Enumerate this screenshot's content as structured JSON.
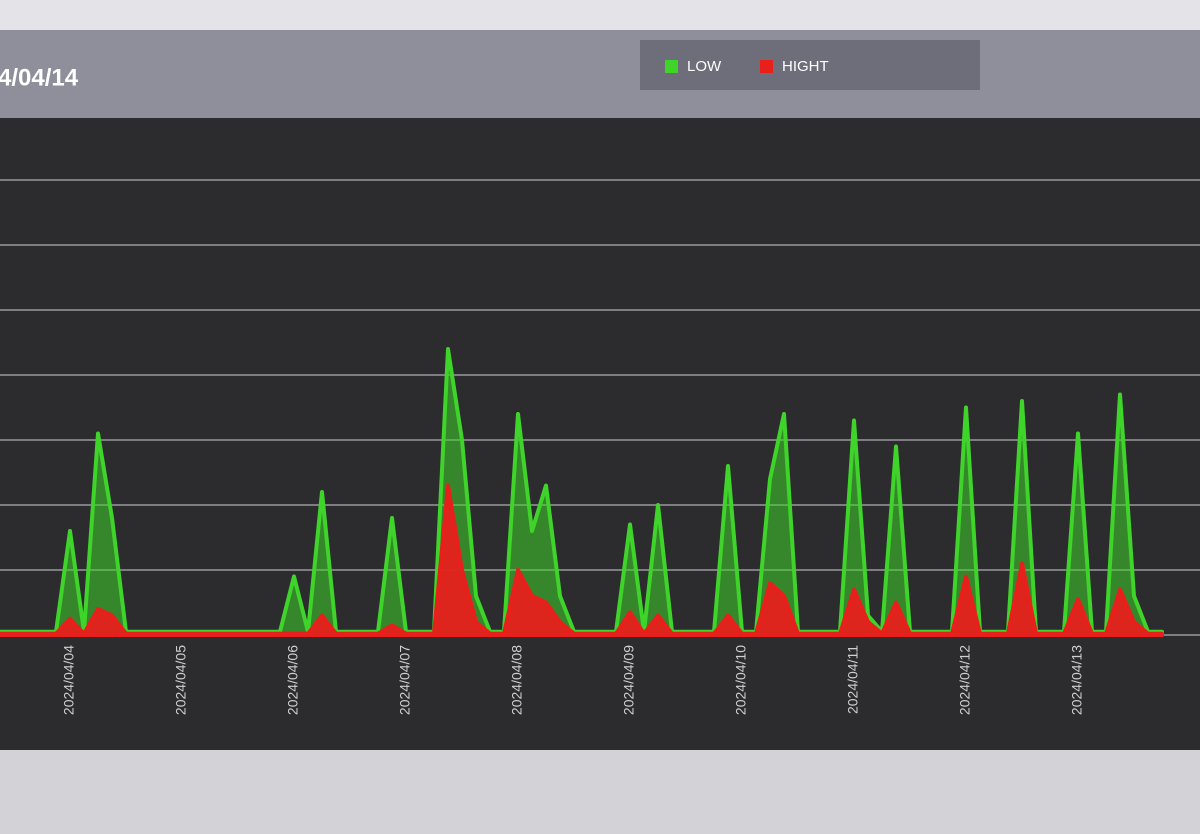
{
  "chart_data": {
    "type": "area",
    "title": "4/04/14",
    "categories": [
      null,
      null,
      null,
      null,
      null,
      "2024/04/04",
      null,
      null,
      null,
      null,
      null,
      null,
      null,
      "2024/04/05",
      null,
      null,
      null,
      null,
      null,
      null,
      null,
      "2024/04/06",
      null,
      null,
      null,
      null,
      null,
      null,
      null,
      "2024/04/07",
      null,
      null,
      null,
      null,
      null,
      null,
      null,
      "2024/04/08",
      null,
      null,
      null,
      null,
      null,
      null,
      null,
      "2024/04/09",
      null,
      null,
      null,
      null,
      null,
      null,
      null,
      "2024/04/10",
      null,
      null,
      null,
      null,
      null,
      null,
      null,
      "2024/04/11",
      null,
      null,
      null,
      null,
      null,
      null,
      null,
      "2024/04/12",
      null,
      null,
      null,
      null,
      null,
      null,
      null,
      "2024/04/13",
      null,
      null,
      null,
      null,
      null,
      null
    ],
    "series": [
      {
        "name": "LOW",
        "color": "#3fd42a",
        "values": [
          0.05,
          0.05,
          0.05,
          0.05,
          0.05,
          1.6,
          0.05,
          3.1,
          1.8,
          0.05,
          0.05,
          0.05,
          0.05,
          0.05,
          0.05,
          0.05,
          0.05,
          0.05,
          0.05,
          0.05,
          0.05,
          0.9,
          0.05,
          2.2,
          0.05,
          0.05,
          0.05,
          0.05,
          1.8,
          0.05,
          0.05,
          0.05,
          4.4,
          3.0,
          0.6,
          0.05,
          0.05,
          3.4,
          1.6,
          2.3,
          0.6,
          0.05,
          0.05,
          0.05,
          0.05,
          1.7,
          0.05,
          2.0,
          0.05,
          0.05,
          0.05,
          0.05,
          2.6,
          0.05,
          0.05,
          2.4,
          3.4,
          0.05,
          0.05,
          0.05,
          0.05,
          3.3,
          0.3,
          0.05,
          2.9,
          0.05,
          0.05,
          0.05,
          0.05,
          3.5,
          0.05,
          0.05,
          0.05,
          3.6,
          0.05,
          0.05,
          0.05,
          3.1,
          0.05,
          0.05,
          3.7,
          0.6,
          0.05,
          0.05
        ]
      },
      {
        "name": "HIGHT",
        "color": "#e8201c",
        "values": [
          0.02,
          0.02,
          0.02,
          0.02,
          0.02,
          0.25,
          0.02,
          0.4,
          0.3,
          0.02,
          0.02,
          0.02,
          0.02,
          0.02,
          0.02,
          0.02,
          0.02,
          0.02,
          0.02,
          0.02,
          0.02,
          0.02,
          0.02,
          0.3,
          0.02,
          0.02,
          0.02,
          0.02,
          0.15,
          0.02,
          0.02,
          0.02,
          2.3,
          1.0,
          0.2,
          0.02,
          0.02,
          1.0,
          0.6,
          0.5,
          0.2,
          0.02,
          0.02,
          0.02,
          0.02,
          0.35,
          0.02,
          0.3,
          0.02,
          0.02,
          0.02,
          0.02,
          0.3,
          0.02,
          0.02,
          0.8,
          0.6,
          0.02,
          0.02,
          0.02,
          0.02,
          0.7,
          0.2,
          0.02,
          0.5,
          0.02,
          0.02,
          0.02,
          0.02,
          0.9,
          0.02,
          0.02,
          0.02,
          1.1,
          0.02,
          0.02,
          0.02,
          0.55,
          0.02,
          0.02,
          0.7,
          0.2,
          0.02,
          0.02
        ]
      }
    ],
    "ylim": [
      0,
      7.8
    ],
    "yticks": [
      0,
      1,
      2,
      3,
      4,
      5,
      6,
      7
    ],
    "grid": true
  }
}
